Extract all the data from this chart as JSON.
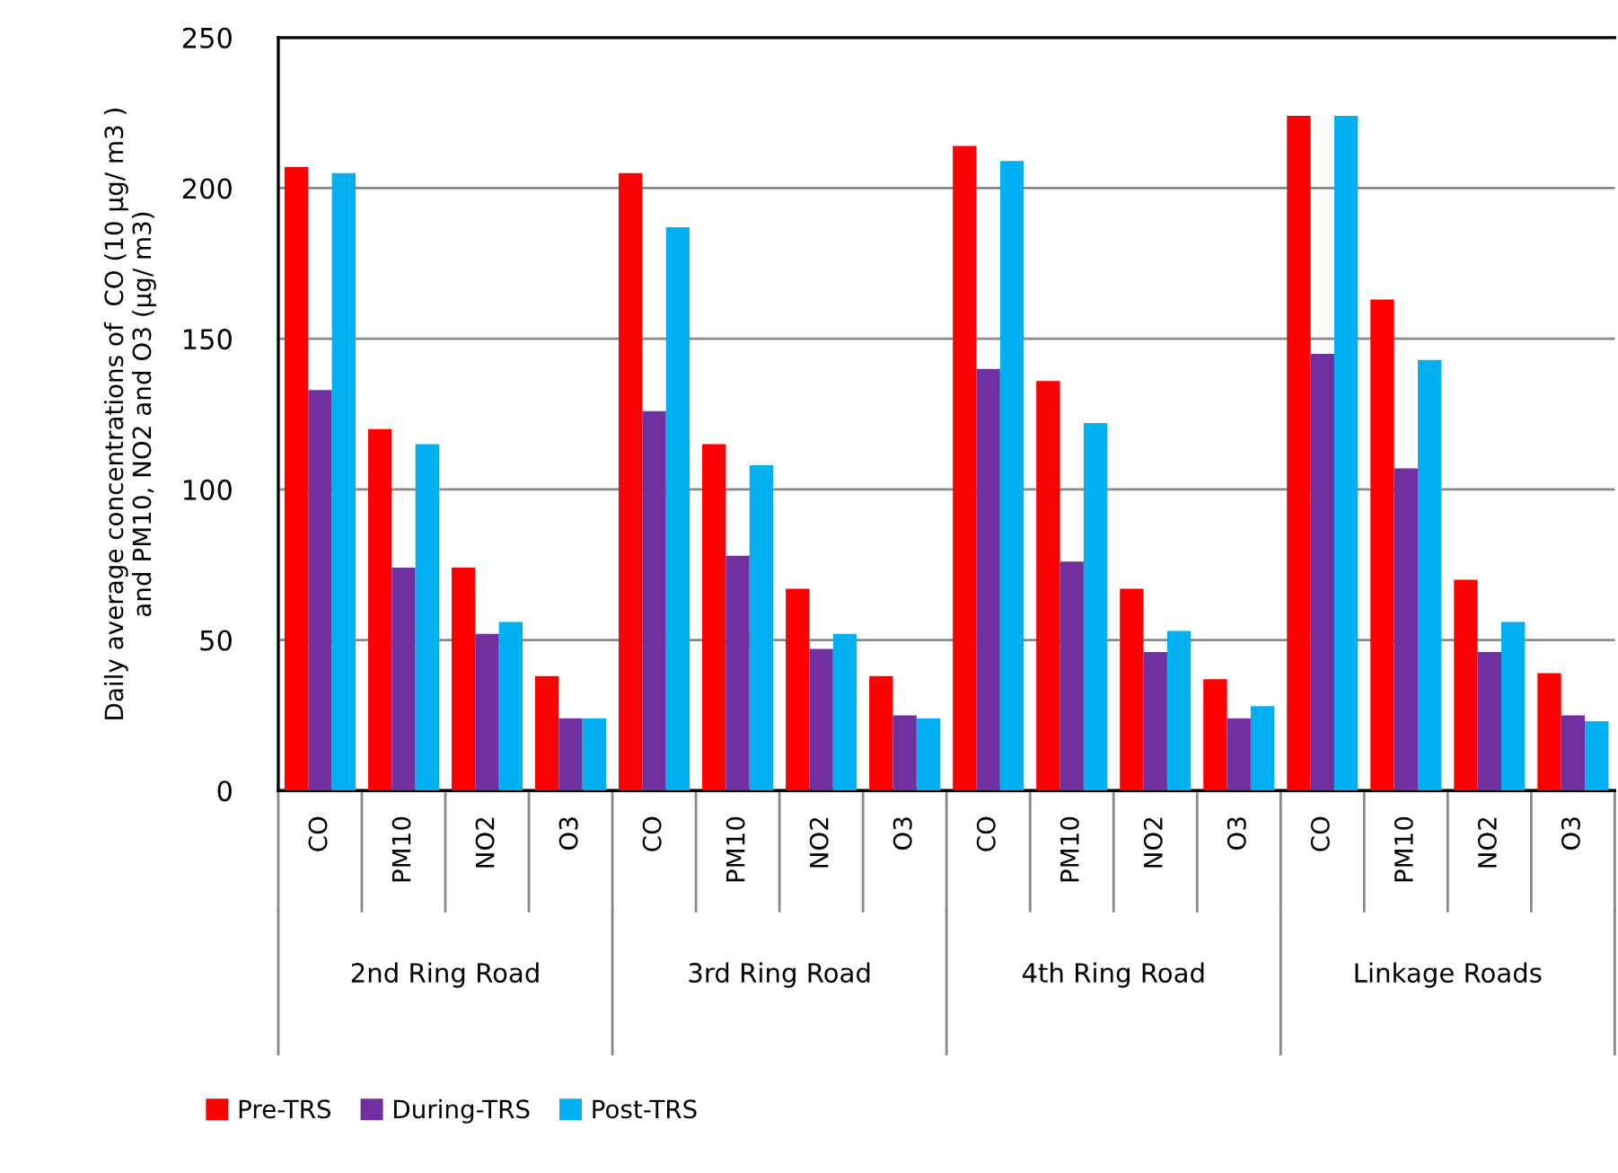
{
  "chart_data": {
    "type": "bar",
    "ylabel": "Daily average concentrations of  CO (10 µg/ m3 )\nand PM10, NO2 and O3 (µg/ m3)",
    "categories": [
      "CO",
      "PM10",
      "NO2",
      "O3",
      "CO",
      "PM10",
      "NO2",
      "O3",
      "CO",
      "PM10",
      "NO2",
      "O3",
      "CO",
      "PM10",
      "NO2",
      "O3"
    ],
    "annotations": [
      "2nd Ring Road",
      "3rd Ring Road",
      "4th Ring Road",
      "Linkage Roads"
    ],
    "series": [
      {
        "name": "Pre-TRS",
        "color": "#ff0000",
        "values": [
          207,
          120,
          74,
          38,
          205,
          115,
          67,
          38,
          214,
          136,
          67,
          37,
          224,
          163,
          70,
          39
        ]
      },
      {
        "name": "During-TRS",
        "color": "#7030a0",
        "values": [
          133,
          74,
          52,
          24,
          126,
          78,
          47,
          25,
          140,
          76,
          46,
          24,
          145,
          107,
          46,
          25
        ]
      },
      {
        "name": "Post-TRS",
        "color": "#00b0f0",
        "values": [
          205,
          115,
          56,
          24,
          187,
          108,
          52,
          24,
          209,
          122,
          53,
          28,
          224,
          143,
          56,
          23
        ]
      }
    ],
    "ylim": [
      0,
      250
    ],
    "yticks": [
      0,
      50,
      100,
      150,
      200,
      250
    ],
    "grid": "y",
    "legend": "bottom"
  }
}
